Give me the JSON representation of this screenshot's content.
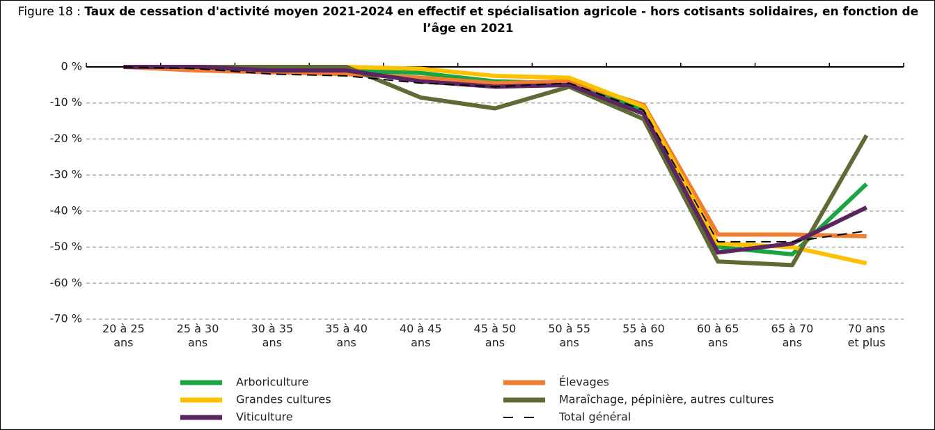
{
  "chart_data": {
    "type": "line",
    "title_label": "Figure 18 :",
    "title": "Taux de cessation d'activité moyen 2021-2024 en effectif et spécialisation agricole - hors cotisants solidaires, en fonction de l’âge en 2021",
    "categories": [
      "20 à 25 ans",
      "25 à 30 ans",
      "30 à 35 ans",
      "35 à 40 ans",
      "40 à 45 ans",
      "45 à 50 ans",
      "50 à 55 ans",
      "55 à 60 ans",
      "60 à 65 ans",
      "65 à 70 ans",
      "70 ans et plus"
    ],
    "ylim": [
      -70,
      0
    ],
    "yticks": [
      {
        "value": 0,
        "label": "0 %"
      },
      {
        "value": -10,
        "label": "-10 %"
      },
      {
        "value": -20,
        "label": "-20 %"
      },
      {
        "value": -30,
        "label": "-30 %"
      },
      {
        "value": -40,
        "label": "-40 %"
      },
      {
        "value": -50,
        "label": "-50 %"
      },
      {
        "value": -60,
        "label": "-60 %"
      },
      {
        "value": -70,
        "label": "-70 %"
      }
    ],
    "grid": true,
    "series": [
      {
        "name": "Arboriculture",
        "color": "#1aa542",
        "values": [
          0,
          -0.5,
          -1,
          -1,
          -1.7,
          -4,
          -4.5,
          -12,
          -50,
          -52,
          -32.5
        ]
      },
      {
        "name": "Élevages",
        "color": "#ef7d32",
        "values": [
          0,
          -1,
          -1.5,
          -2,
          -3,
          -4.5,
          -4,
          -10.5,
          -46.5,
          -46.5,
          -47
        ]
      },
      {
        "name": "Grandes cultures",
        "color": "#ffc000",
        "values": [
          0,
          0,
          0,
          0,
          -0.5,
          -2.5,
          -3,
          -11,
          -49,
          -50,
          -54.5
        ]
      },
      {
        "name": "Maraîchage, pépinière, autres cultures",
        "color": "#5f6a34",
        "values": [
          0,
          0,
          0,
          0,
          -8.5,
          -11.5,
          -5.5,
          -14.5,
          -54,
          -55,
          -19
        ]
      },
      {
        "name": "Viticulture",
        "color": "#5b2561",
        "values": [
          0,
          0,
          -1,
          -1,
          -4,
          -5.5,
          -5,
          -13,
          -51.5,
          -49,
          -39
        ]
      },
      {
        "name": "Total général",
        "color": "#000000",
        "dashed": true,
        "values": [
          0,
          -0.5,
          -2,
          -2.5,
          -4.5,
          -5.5,
          -4.5,
          -12,
          -48.5,
          -48.5,
          -45.5
        ]
      }
    ]
  }
}
